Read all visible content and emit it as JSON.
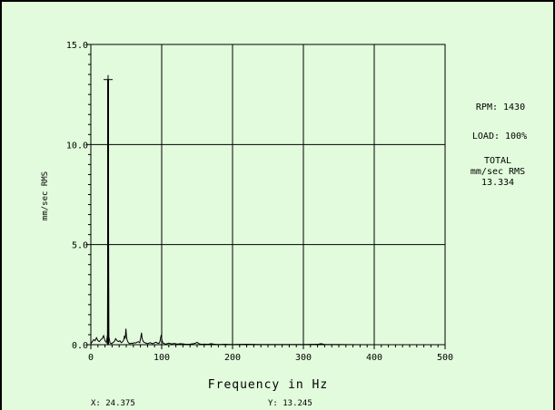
{
  "colors": {
    "background": "#e2fbdc",
    "line": "#000000"
  },
  "side_panel": {
    "rpm": "RPM: 1430",
    "load": "LOAD: 100%",
    "total_title": "TOTAL",
    "total_units": "mm/sec RMS",
    "total_value": "13.334"
  },
  "cursor_readout": {
    "x": "X: 24.375",
    "y": "Y: 13.245"
  },
  "chart_data": {
    "type": "line",
    "title": "",
    "xlabel": "Frequency in Hz",
    "ylabel": "mm/sec RMS",
    "xlim": [
      0,
      500
    ],
    "ylim": [
      0,
      15
    ],
    "grid": true,
    "x_ticks": [
      0,
      100,
      200,
      300,
      400,
      500
    ],
    "x_tick_labels": [
      "0",
      "100",
      "200",
      "300",
      "400",
      "500"
    ],
    "y_ticks": [
      0,
      5,
      10,
      15
    ],
    "y_tick_labels": [
      "0.0",
      "5.0",
      "10.0",
      "15.0"
    ],
    "series": [
      {
        "x": [
          0,
          2,
          4,
          6,
          8,
          10,
          12,
          14,
          16,
          18,
          20,
          22,
          23.5,
          24.375,
          25.5,
          27,
          29,
          31,
          33,
          35,
          37,
          39,
          41,
          43,
          45,
          46.5,
          47.5,
          48.5,
          49.5,
          50.5,
          51.5,
          53,
          55,
          57,
          59,
          61,
          63,
          65,
          67,
          69,
          70.5,
          71.5,
          72.5,
          74,
          76,
          78,
          80,
          82,
          84,
          86,
          88,
          90,
          92,
          94,
          96,
          97.5,
          98.5,
          99.5,
          100.5,
          102,
          104,
          106,
          110,
          114,
          118,
          122,
          126,
          130,
          135,
          140,
          145,
          148,
          150,
          152,
          156,
          160,
          165,
          170,
          175,
          180,
          190,
          200,
          220,
          240,
          260,
          280,
          300,
          320,
          325,
          330,
          350,
          400,
          450,
          500
        ],
        "y": [
          0.05,
          0.15,
          0.25,
          0.2,
          0.35,
          0.2,
          0.15,
          0.25,
          0.3,
          0.45,
          0.2,
          0.1,
          0.5,
          13.245,
          0.4,
          0.1,
          0.05,
          0.1,
          0.15,
          0.3,
          0.2,
          0.15,
          0.2,
          0.1,
          0.15,
          0.25,
          0.45,
          0.3,
          0.8,
          0.35,
          0.2,
          0.1,
          0.05,
          0.08,
          0.06,
          0.1,
          0.08,
          0.12,
          0.15,
          0.1,
          0.35,
          0.6,
          0.3,
          0.15,
          0.1,
          0.08,
          0.05,
          0.08,
          0.1,
          0.06,
          0.05,
          0.1,
          0.12,
          0.08,
          0.06,
          0.15,
          0.35,
          0.5,
          0.2,
          0.08,
          0.05,
          0.03,
          0.08,
          0.04,
          0.06,
          0.03,
          0.05,
          0.04,
          0.02,
          0.03,
          0.05,
          0.08,
          0.12,
          0.06,
          0.02,
          0.03,
          0.02,
          0.05,
          0.02,
          0.01,
          0.02,
          0.01,
          0.02,
          0.01,
          0.01,
          0.01,
          0.01,
          0.02,
          0.05,
          0.01,
          0.01,
          0.0,
          0.0,
          0.0
        ]
      }
    ],
    "marker": {
      "x": 24.375,
      "y": 13.245,
      "symbol": "+"
    }
  }
}
